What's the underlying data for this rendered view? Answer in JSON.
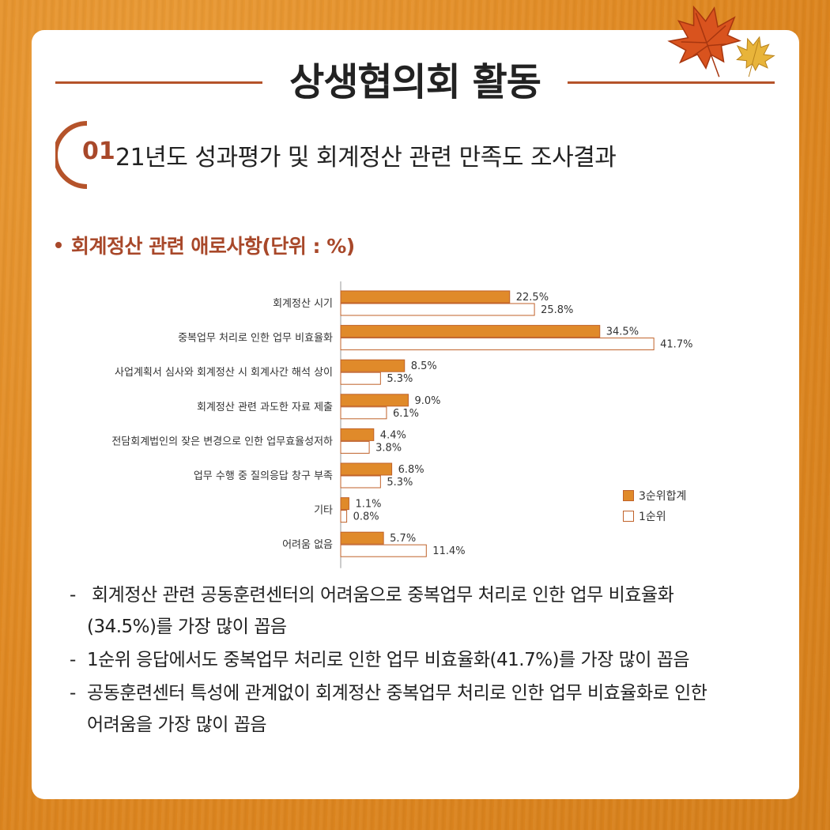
{
  "page_title": "상생협의회 활동",
  "section": {
    "number": "01",
    "title": "21년도 성과평가 및 회계정산 관련 만족도 조사결과"
  },
  "subhead": "회계정산 관련 애로사항(단위 : %)",
  "colors": {
    "series_total": "#e08a2a",
    "series_first": "#ffffff",
    "bar_stroke": "#c0622a",
    "accent": "#a8482a",
    "title_line": "#b5532a",
    "background": "#e08a22"
  },
  "chart_data": {
    "type": "bar",
    "orientation": "horizontal",
    "categories": [
      "회계정산 시기",
      "중복업무 처리로 인한 업무 비효율화",
      "사업계획서 심사와 회계정산 시 회계사간 해석 상이",
      "회계정산 관련 과도한 자료 제출",
      "전담회계법인의 잦은 변경으로 인한 업무효율성저하",
      "업무 수행 중 질의응답 창구 부족",
      "기타",
      "어려움 없음"
    ],
    "series": [
      {
        "name": "3순위합계",
        "values": [
          22.5,
          34.5,
          8.5,
          9.0,
          4.4,
          6.8,
          1.1,
          5.7
        ],
        "labels": [
          "22.5%",
          "34.5%",
          "8.5%",
          "9.0%",
          "4.4%",
          "6.8%",
          "1.1%",
          "5.7%"
        ]
      },
      {
        "name": "1순위",
        "values": [
          25.8,
          41.7,
          5.3,
          6.1,
          3.8,
          5.3,
          0.8,
          11.4
        ],
        "labels": [
          "25.8%",
          "41.7%",
          "5.3%",
          "6.1%",
          "3.8%",
          "5.3%",
          "0.8%",
          "11.4%"
        ]
      }
    ],
    "title": "",
    "xlabel": "",
    "ylabel": "",
    "xlim": [
      0,
      45
    ],
    "grid": false,
    "legend_position": "right"
  },
  "notes": [
    {
      "dash": "-",
      "text": "회계정산 관련 공동훈련센터의 어려움으로 중복업무 처리로 인한 업무 비효율화",
      "cont": "(34.5%)를 가장 많이 꼽음"
    },
    {
      "dash": "-",
      "text": "1순위 응답에서도 중복업무 처리로 인한 업무 비효율화(41.7%)를 가장 많이 꼽음",
      "cont": ""
    },
    {
      "dash": "-",
      "text": "공동훈련센터 특성에 관계없이 회계정산 중복업무 처리로 인한 업무 비효율화로 인한",
      "cont": "어려움을 가장 많이 꼽음"
    }
  ]
}
